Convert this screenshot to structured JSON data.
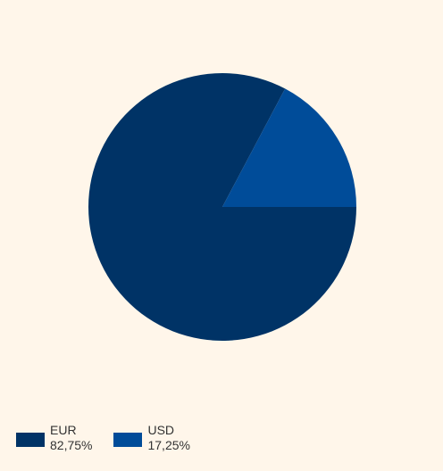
{
  "chart_data": {
    "type": "pie",
    "slices": [
      {
        "label": "EUR",
        "value": 82.75,
        "value_text": "82,75%",
        "color": "#003366"
      },
      {
        "label": "USD",
        "value": 17.25,
        "value_text": "17,25%",
        "color": "#004c99"
      }
    ],
    "title": "",
    "legend_position": "bottom-left"
  }
}
